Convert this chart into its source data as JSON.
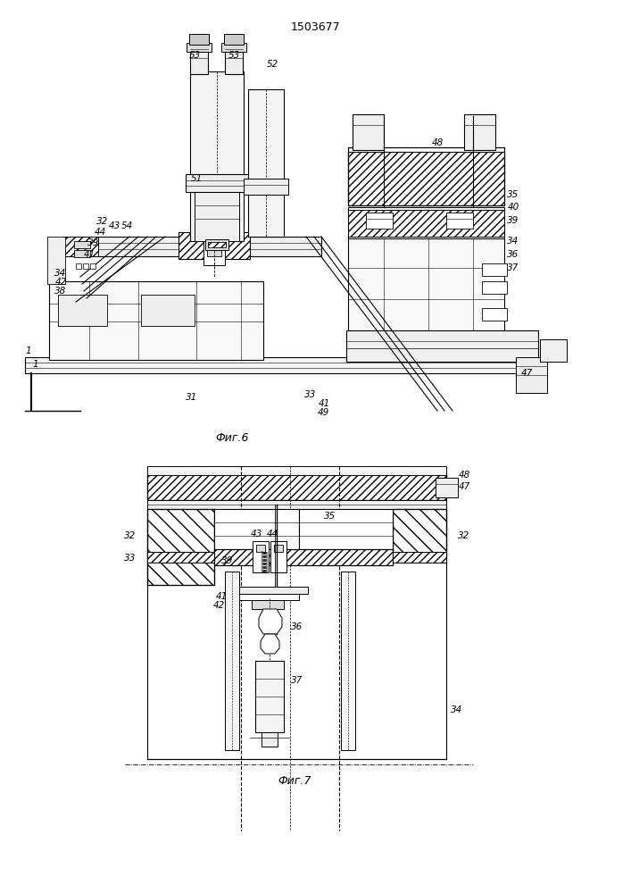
{
  "title": "1503677",
  "fig6_label": "Фиг.6",
  "fig7_label": "Фиг.7",
  "bg_color": "#ffffff",
  "line_color": "#000000",
  "fig_width": 7.07,
  "fig_height": 10.0,
  "dpi": 100
}
